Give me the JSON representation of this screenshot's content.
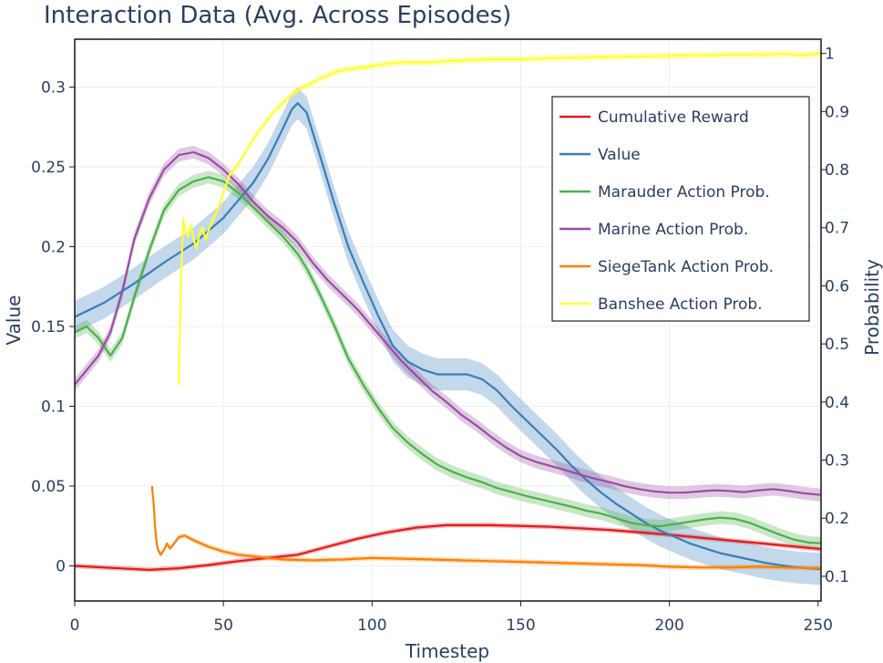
{
  "chart_data": {
    "type": "line",
    "title": "Interaction Data (Avg. Across Episodes)",
    "xlabel": "Timestep",
    "ylabel": "Value",
    "y2label": "Probability",
    "xlim": [
      0,
      251
    ],
    "ylim": [
      -0.022,
      0.33
    ],
    "y2lim": [
      0.0575,
      1.0245
    ],
    "x_ticks": [
      0,
      50,
      100,
      150,
      200,
      250
    ],
    "y_ticks": [
      0,
      0.05,
      0.1,
      0.15,
      0.2,
      0.25,
      0.3
    ],
    "y2_ticks": [
      0.1,
      0.2,
      0.3,
      0.4,
      0.5,
      0.6,
      0.7,
      0.8,
      0.9,
      1
    ],
    "legend_position": "top-right",
    "series": [
      {
        "name": "Cumulative Reward",
        "axis": "y",
        "color": "#e41a1c",
        "band": 0.0015,
        "x": [
          0,
          10,
          20,
          25,
          35,
          45,
          55,
          65,
          75,
          85,
          95,
          105,
          115,
          125,
          140,
          160,
          180,
          200,
          220,
          240,
          251
        ],
        "values": [
          0,
          -0.001,
          -0.002,
          -0.0025,
          -0.0015,
          0.0005,
          0.003,
          0.005,
          0.007,
          0.012,
          0.017,
          0.021,
          0.024,
          0.0255,
          0.0255,
          0.0245,
          0.0225,
          0.0195,
          0.016,
          0.0125,
          0.0105
        ]
      },
      {
        "name": "Value",
        "axis": "y",
        "color": "#377eb8",
        "band": 0.01,
        "x": [
          0,
          10,
          20,
          30,
          40,
          50,
          60,
          65,
          70,
          73,
          75,
          78,
          82,
          87,
          92,
          97,
          102,
          107,
          112,
          117,
          122,
          127,
          132,
          137,
          142,
          147,
          152,
          157,
          162,
          167,
          172,
          177,
          182,
          187,
          192,
          197,
          202,
          207,
          212,
          217,
          222,
          227,
          232,
          237,
          242,
          247,
          251
        ],
        "values": [
          0.156,
          0.165,
          0.177,
          0.19,
          0.202,
          0.218,
          0.24,
          0.255,
          0.274,
          0.286,
          0.29,
          0.284,
          0.26,
          0.229,
          0.2,
          0.178,
          0.157,
          0.138,
          0.128,
          0.123,
          0.12,
          0.12,
          0.12,
          0.117,
          0.11,
          0.1,
          0.091,
          0.082,
          0.073,
          0.063,
          0.054,
          0.046,
          0.039,
          0.033,
          0.027,
          0.022,
          0.018,
          0.014,
          0.011,
          0.008,
          0.006,
          0.004,
          0.002,
          0.0005,
          -0.0008,
          -0.0015,
          -0.002
        ]
      },
      {
        "name": "Marauder Action Prob.",
        "axis": "y2",
        "color": "#4daf4a",
        "band": 0.011,
        "x": [
          0,
          4,
          8,
          12,
          16,
          20,
          25,
          30,
          35,
          40,
          45,
          50,
          55,
          60,
          65,
          70,
          75,
          78,
          82,
          87,
          92,
          97,
          102,
          107,
          112,
          117,
          122,
          127,
          132,
          137,
          142,
          147,
          152,
          157,
          162,
          167,
          172,
          177,
          182,
          187,
          192,
          197,
          202,
          207,
          212,
          217,
          222,
          227,
          232,
          237,
          242,
          247,
          251
        ],
        "values": [
          0.52,
          0.53,
          0.51,
          0.48,
          0.51,
          0.58,
          0.66,
          0.73,
          0.765,
          0.78,
          0.787,
          0.78,
          0.76,
          0.735,
          0.71,
          0.685,
          0.655,
          0.63,
          0.59,
          0.535,
          0.475,
          0.43,
          0.39,
          0.355,
          0.33,
          0.31,
          0.292,
          0.28,
          0.27,
          0.262,
          0.252,
          0.245,
          0.238,
          0.232,
          0.226,
          0.22,
          0.213,
          0.208,
          0.2,
          0.192,
          0.188,
          0.186,
          0.19,
          0.194,
          0.198,
          0.201,
          0.199,
          0.192,
          0.182,
          0.172,
          0.163,
          0.158,
          0.157
        ]
      },
      {
        "name": "Marine Action Prob.",
        "axis": "y2",
        "color": "#984ea3",
        "band": 0.011,
        "x": [
          0,
          4,
          8,
          12,
          16,
          20,
          25,
          30,
          35,
          40,
          45,
          50,
          55,
          60,
          65,
          70,
          75,
          80,
          85,
          90,
          95,
          100,
          105,
          110,
          115,
          120,
          125,
          130,
          135,
          140,
          145,
          150,
          155,
          160,
          165,
          170,
          175,
          180,
          185,
          190,
          195,
          200,
          205,
          210,
          215,
          220,
          225,
          230,
          235,
          240,
          245,
          251
        ],
        "values": [
          0.43,
          0.455,
          0.48,
          0.52,
          0.59,
          0.68,
          0.75,
          0.8,
          0.825,
          0.83,
          0.82,
          0.8,
          0.775,
          0.745,
          0.72,
          0.7,
          0.675,
          0.64,
          0.61,
          0.585,
          0.56,
          0.53,
          0.5,
          0.47,
          0.445,
          0.42,
          0.4,
          0.378,
          0.36,
          0.34,
          0.322,
          0.307,
          0.297,
          0.29,
          0.283,
          0.275,
          0.268,
          0.262,
          0.255,
          0.25,
          0.246,
          0.244,
          0.244,
          0.246,
          0.248,
          0.247,
          0.245,
          0.248,
          0.25,
          0.247,
          0.243,
          0.24
        ]
      },
      {
        "name": "SiegeTank Action Prob.",
        "axis": "y",
        "color": "#ff7f00",
        "band": 0.0015,
        "x": [
          26,
          26.5,
          27,
          27.5,
          28,
          29,
          30,
          31,
          32,
          33,
          35,
          37,
          40,
          45,
          50,
          55,
          60,
          65,
          70,
          80,
          90,
          100,
          110,
          120,
          130,
          140,
          150,
          160,
          170,
          180,
          190,
          200,
          210,
          220,
          230,
          240,
          251
        ],
        "values": [
          0.05,
          0.04,
          0.025,
          0.015,
          0.01,
          0.007,
          0.01,
          0.014,
          0.011,
          0.013,
          0.018,
          0.019,
          0.016,
          0.012,
          0.009,
          0.007,
          0.006,
          0.005,
          0.004,
          0.0035,
          0.004,
          0.005,
          0.0045,
          0.004,
          0.0035,
          0.003,
          0.0025,
          0.002,
          0.0015,
          0.001,
          0.0005,
          -0.0005,
          -0.001,
          -0.001,
          -0.0005,
          -0.001,
          -0.0015
        ]
      },
      {
        "name": "Banshee Action Prob.",
        "axis": "y2",
        "color": "#ffff33",
        "band": 0.006,
        "x": [
          35,
          35.5,
          36,
          36.5,
          37,
          38,
          39,
          40,
          41,
          42,
          43,
          44,
          46,
          48,
          50,
          52,
          55,
          58,
          61,
          64,
          67,
          70,
          73,
          76,
          79,
          82,
          85,
          88,
          91,
          95,
          100,
          105,
          110,
          120,
          130,
          140,
          150,
          160,
          170,
          180,
          190,
          200,
          210,
          220,
          230,
          240,
          245,
          251
        ],
        "values": [
          0.43,
          0.55,
          0.65,
          0.715,
          0.7,
          0.685,
          0.705,
          0.68,
          0.665,
          0.69,
          0.7,
          0.68,
          0.71,
          0.73,
          0.76,
          0.79,
          0.81,
          0.835,
          0.86,
          0.88,
          0.9,
          0.915,
          0.93,
          0.94,
          0.947,
          0.955,
          0.962,
          0.968,
          0.972,
          0.975,
          0.978,
          0.982,
          0.985,
          0.985,
          0.988,
          0.99,
          0.99,
          0.992,
          0.993,
          0.994,
          0.995,
          0.996,
          0.997,
          0.998,
          0.998,
          0.999,
          0.997,
          1.0
        ]
      }
    ]
  }
}
